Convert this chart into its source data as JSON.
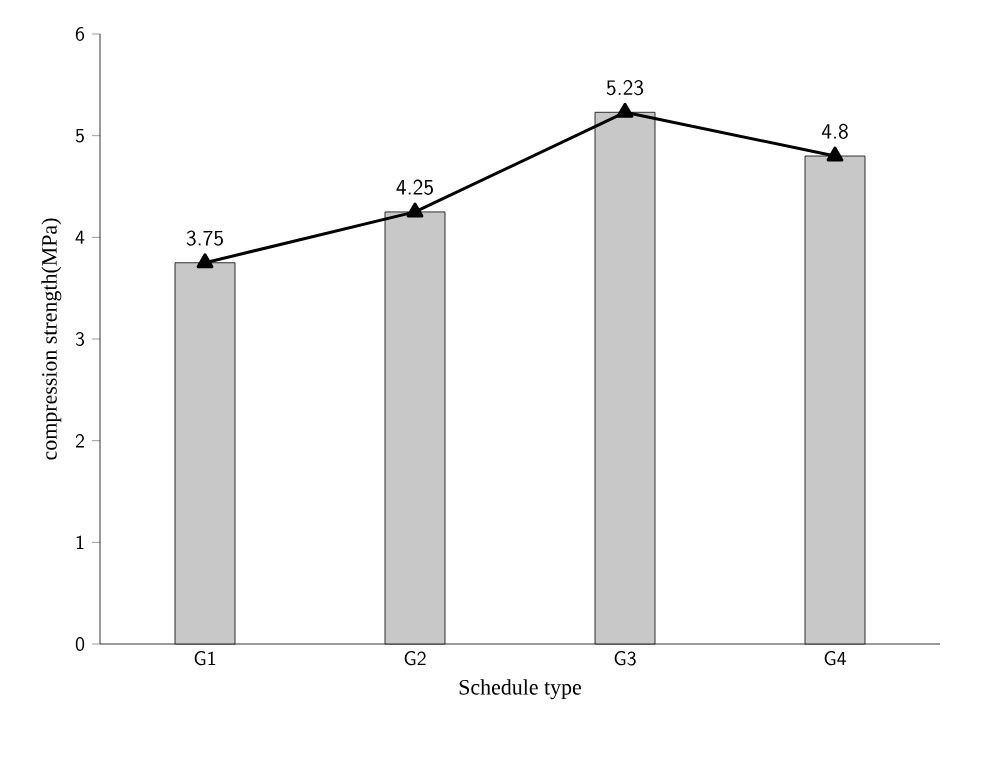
{
  "chart_data": {
    "type": "bar",
    "xlabel": "Schedule type",
    "ylabel": "compression strength(MPa)",
    "categories": [
      "G1",
      "G2",
      "G3",
      "G4"
    ],
    "series": [
      {
        "color": "#c8c8c8",
        "values": [
          3.75,
          4.25,
          5.23,
          4.8
        ]
      },
      {
        "type": "line",
        "color": "#000000",
        "marker": "triangle",
        "values": [
          3.75,
          4.25,
          5.23,
          4.8
        ],
        "value_labels": [
          "3.75",
          "4.25",
          "5.23",
          "4.8"
        ]
      }
    ],
    "ylim": [
      0,
      6
    ],
    "yticks": [
      0,
      1,
      2,
      3,
      4,
      5,
      6
    ],
    "grid": false
  }
}
